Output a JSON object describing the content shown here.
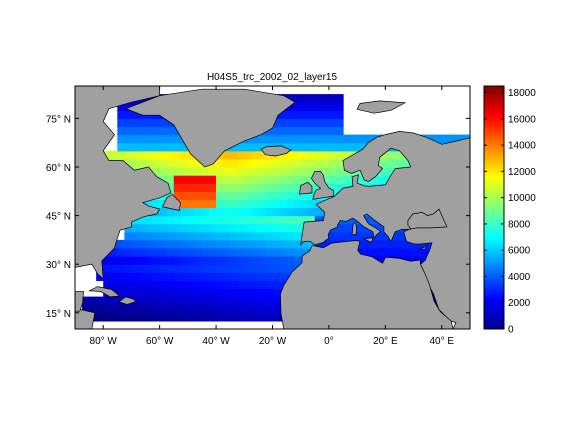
{
  "chart_data": {
    "type": "heatmap",
    "title": "H04S5_trc_2002_02_layer15",
    "xlabel": "",
    "ylabel": "",
    "x_ticks": [
      {
        "value": -80,
        "label": "80° W"
      },
      {
        "value": -60,
        "label": "60° W"
      },
      {
        "value": -40,
        "label": "40° W"
      },
      {
        "value": -20,
        "label": "20° W"
      },
      {
        "value": 0,
        "label": "0°"
      },
      {
        "value": 20,
        "label": "20° E"
      },
      {
        "value": 40,
        "label": "40° E"
      }
    ],
    "y_ticks": [
      {
        "value": 75,
        "label": "75° N"
      },
      {
        "value": 60,
        "label": "60° N"
      },
      {
        "value": 45,
        "label": "45° N"
      },
      {
        "value": 30,
        "label": "30° N"
      },
      {
        "value": 15,
        "label": "15° N"
      }
    ],
    "xlim": [
      -90,
      50
    ],
    "ylim": [
      10,
      85
    ],
    "colorbar": {
      "min": 0,
      "max": 18500,
      "ticks": [
        0,
        2000,
        4000,
        6000,
        8000,
        10000,
        12000,
        14000,
        16000,
        18000
      ],
      "colormap": "jet"
    },
    "land_color": "#a0a0a0",
    "nodata_color": "#ffffff"
  }
}
